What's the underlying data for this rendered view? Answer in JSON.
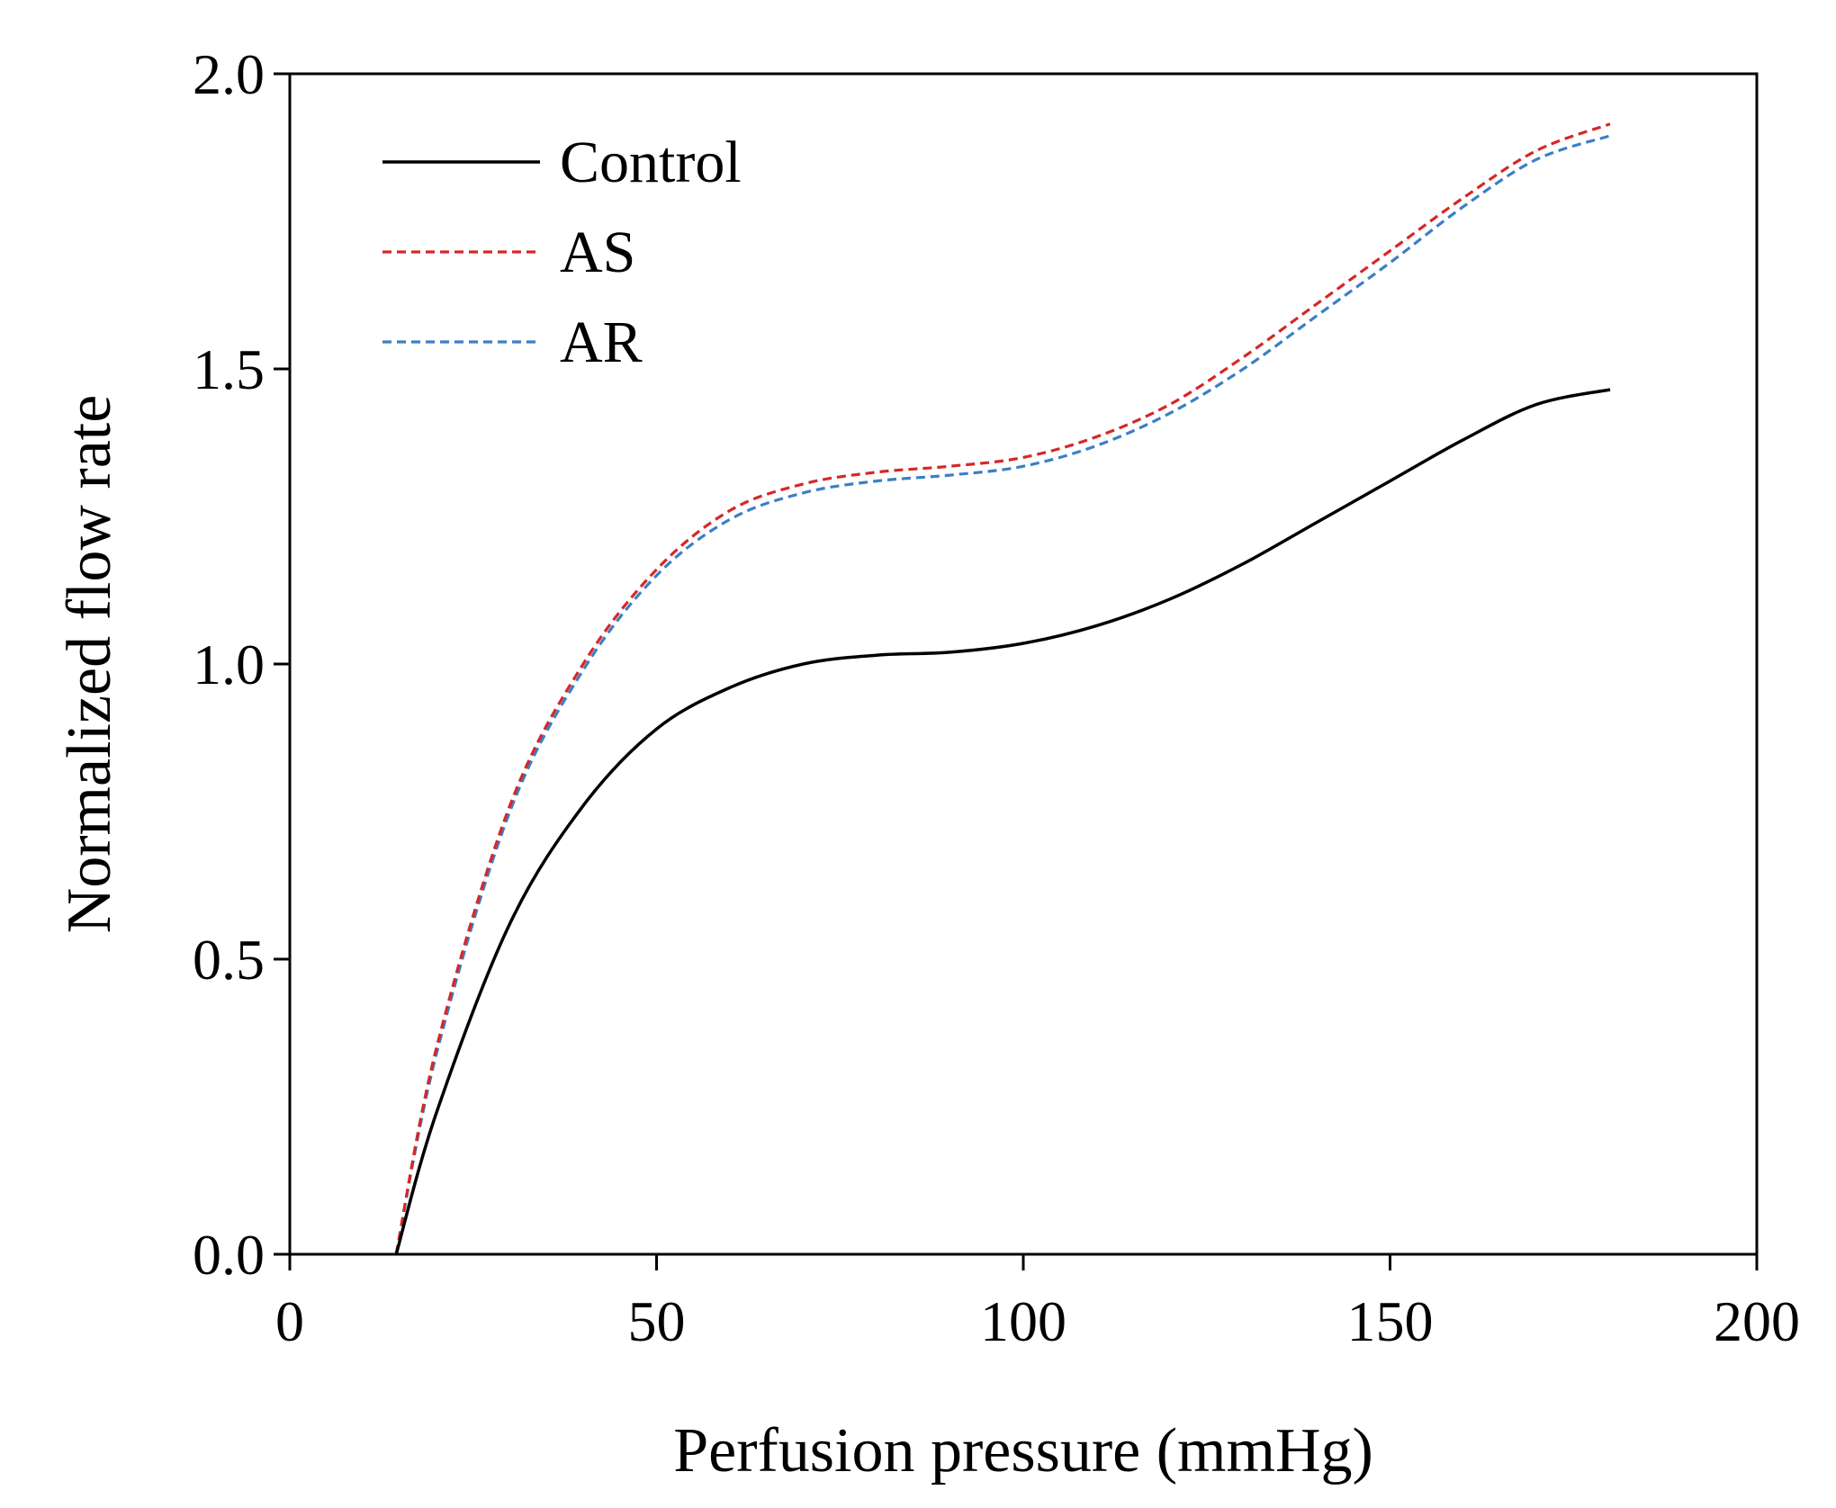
{
  "chart_data": {
    "type": "line",
    "title": "",
    "xlabel": "Perfusion pressure (mmHg)",
    "ylabel": "Normalized flow rate",
    "xlim": [
      0,
      200
    ],
    "ylim": [
      0.0,
      2.0
    ],
    "xticks": [
      0,
      50,
      100,
      150,
      200
    ],
    "yticks": [
      0.0,
      0.5,
      1.0,
      1.5,
      2.0
    ],
    "xtick_labels": [
      "0",
      "50",
      "100",
      "150",
      "200"
    ],
    "ytick_labels": [
      "0.0",
      "0.5",
      "1.0",
      "1.5",
      "2.0"
    ],
    "grid": false,
    "legend_position": "top-left",
    "series": [
      {
        "name": "Control",
        "color": "#000000",
        "dash": "solid",
        "x": [
          14.5,
          20,
          30,
          40,
          50,
          60,
          70,
          80,
          90,
          100,
          110,
          120,
          130,
          140,
          150,
          160,
          170,
          180
        ],
        "y": [
          0.0,
          0.24,
          0.56,
          0.76,
          0.89,
          0.96,
          1.0,
          1.015,
          1.02,
          1.035,
          1.065,
          1.11,
          1.17,
          1.24,
          1.31,
          1.38,
          1.44,
          1.465
        ]
      },
      {
        "name": "AS",
        "color": "#d62728",
        "dash": "dashed",
        "x": [
          14.5,
          20,
          30,
          40,
          50,
          60,
          70,
          80,
          90,
          100,
          110,
          120,
          130,
          140,
          150,
          160,
          170,
          180
        ],
        "y": [
          0.0,
          0.35,
          0.76,
          1.0,
          1.16,
          1.26,
          1.305,
          1.325,
          1.335,
          1.35,
          1.385,
          1.44,
          1.52,
          1.61,
          1.7,
          1.79,
          1.87,
          1.915
        ]
      },
      {
        "name": "AR",
        "color": "#3b7fc4",
        "dash": "dashed",
        "x": [
          14.5,
          20,
          30,
          40,
          50,
          60,
          70,
          80,
          90,
          100,
          110,
          120,
          130,
          140,
          150,
          160,
          170,
          180
        ],
        "y": [
          0.0,
          0.34,
          0.75,
          0.99,
          1.15,
          1.245,
          1.29,
          1.31,
          1.32,
          1.335,
          1.37,
          1.425,
          1.5,
          1.59,
          1.68,
          1.775,
          1.855,
          1.895
        ]
      }
    ]
  }
}
